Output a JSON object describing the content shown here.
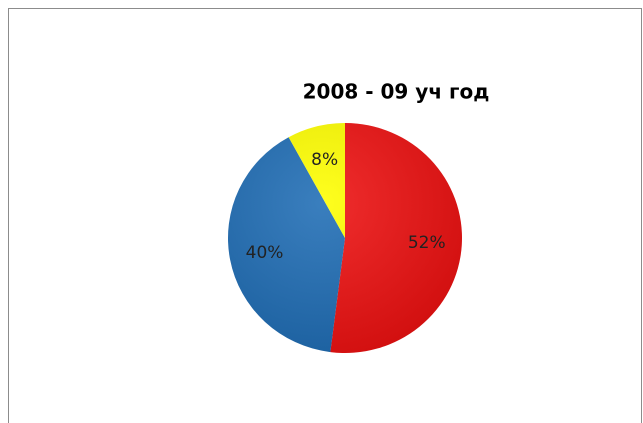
{
  "chart_data": {
    "type": "pie",
    "title": "2008 - 09 уч год",
    "values": [
      52,
      40,
      8
    ],
    "value_labels": [
      "52%",
      "40%",
      "8%"
    ],
    "colors": [
      "#ee1111",
      "#1f6db5",
      "#ffff00"
    ]
  }
}
